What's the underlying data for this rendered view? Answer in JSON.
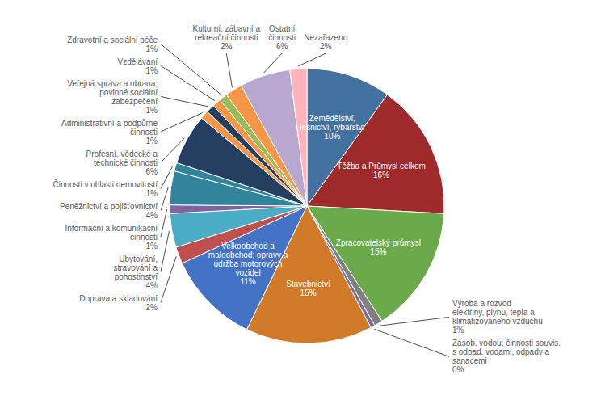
{
  "chart_data": {
    "type": "pie",
    "categories": [
      "Zemědělství,\nlesnictví, rybářství",
      "Těžba a Průmysl celkem",
      "Zpracovatelský průmysl",
      "Výroba a rozvod\nelektřiny, plynu, tepla a\nklimatizovaného vzduchu",
      "Zásob. vodou; činnosti souvis.\ns odpad. vodami, odpady a\nsanacemi",
      "Stavebnictví",
      "Velkoobchod a\nmaloobchod; opravy a\núdržba motorových\nvozidel",
      "Doprava a skladování",
      "Ubytování,\nstravování a\npohostinství",
      "Informační a komunikační\nčinnosti",
      "Peněžnictví a pojišťovnictví",
      "Činnosti v oblasti nemovitostí",
      "Profesní, vědecké a\ntechnické činnosti",
      "Administrativní a podpůrné\nčinnosti",
      "Veřejná správa a obrana;\npovinné sociální\nzabezpečení",
      "Vzdělávání",
      "Zdravotní a sociální péče",
      "Kulturní, zábavní a\nrekreační činnosti",
      "Ostatní\nčinnosti",
      "Nezařazeno"
    ],
    "values": [
      10,
      16,
      15,
      1,
      0.5,
      15,
      11,
      2,
      4,
      1,
      4,
      1,
      6,
      1,
      1,
      1,
      1,
      2,
      6,
      2
    ],
    "value_labels": [
      "10%",
      "16%",
      "15%",
      "1%",
      "0%",
      "15%",
      "11%",
      "2%",
      "4%",
      "1%",
      "4%",
      "1%",
      "6%",
      "1%",
      "1%",
      "1%",
      "1%",
      "2%",
      "6%",
      "2%"
    ],
    "colors": [
      "#4472a0",
      "#9e2a2b",
      "#6aaa4b",
      "#808080",
      "#7c6ca0",
      "#d07a2a",
      "#4472c4",
      "#c0504d",
      "#4bacc6",
      "#8064a2",
      "#31849b",
      "#31849b",
      "#243f60",
      "#f79646",
      "#243f60",
      "#f79646",
      "#9bbb59",
      "#f79646",
      "#b8a8d0",
      "#ffb3ba"
    ],
    "data_labels": true
  }
}
